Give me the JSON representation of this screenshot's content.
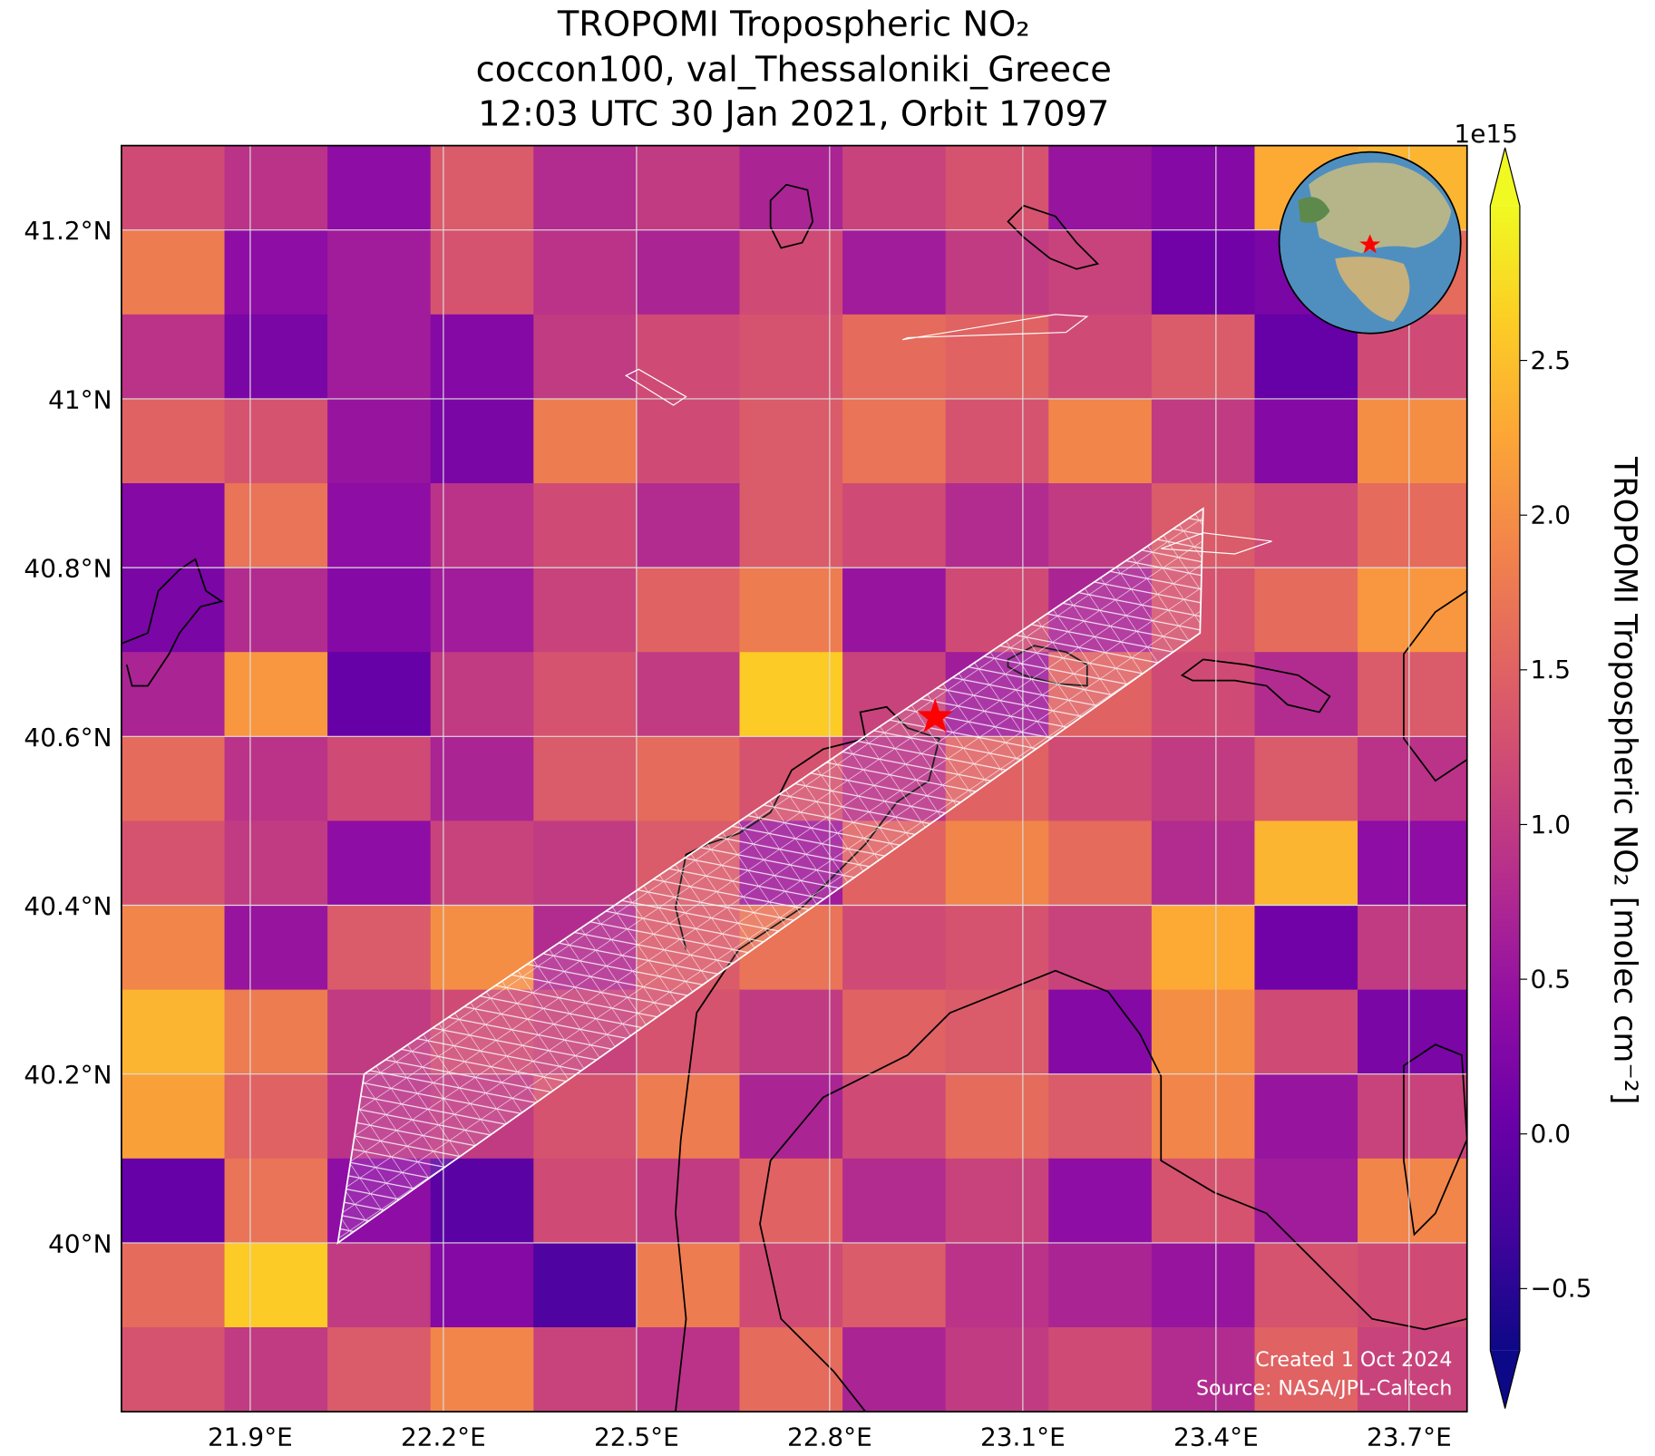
{
  "map": {
    "title": [
      "TROPOMI Tropospheric NO₂",
      "coccon100, val_Thessaloniki_Greece",
      "12:03 UTC 30 Jan 2021, Orbit 17097"
    ],
    "xlim": [
      21.7,
      23.79
    ],
    "ylim": [
      39.8,
      41.3
    ],
    "xticks": [
      {
        "value": 21.9,
        "label": "21.9°E"
      },
      {
        "value": 22.2,
        "label": "22.2°E"
      },
      {
        "value": 22.5,
        "label": "22.5°E"
      },
      {
        "value": 22.8,
        "label": "22.8°E"
      },
      {
        "value": 23.1,
        "label": "23.1°E"
      },
      {
        "value": 23.4,
        "label": "23.4°E"
      },
      {
        "value": 23.7,
        "label": "23.7°E"
      }
    ],
    "yticks": [
      {
        "value": 41.2,
        "label": "41.2°N"
      },
      {
        "value": 41,
        "label": "41°N"
      },
      {
        "value": 40.8,
        "label": "40.8°N"
      },
      {
        "value": 40.6,
        "label": "40.6°N"
      },
      {
        "value": 40.4,
        "label": "40.4°N"
      },
      {
        "value": 40.2,
        "label": "40.2°N"
      },
      {
        "value": 40,
        "label": "40°N"
      }
    ],
    "grid": true,
    "colormap": "plasma",
    "no2_grid": {
      "lon_edges": [
        21.7,
        21.86,
        22.02,
        22.18,
        22.34,
        22.5,
        22.66,
        22.82,
        22.98,
        23.14,
        23.3,
        23.46,
        23.62,
        23.79
      ],
      "lat_edges": [
        41.3,
        41.2,
        41.1,
        41.0,
        40.9,
        40.8,
        40.7,
        40.6,
        40.5,
        40.4,
        40.3,
        40.2,
        40.1,
        40.0,
        39.9,
        39.8
      ],
      "values": [
        [
          1.2,
          0.9,
          0.4,
          1.4,
          0.8,
          1.0,
          0.7,
          1.1,
          1.3,
          0.5,
          0.3,
          2.3,
          2.4
        ],
        [
          1.8,
          0.4,
          0.6,
          1.3,
          0.9,
          0.7,
          1.2,
          0.6,
          1.0,
          1.1,
          0.1,
          0.2,
          1.6
        ],
        [
          0.9,
          0.2,
          0.6,
          0.3,
          1.0,
          1.2,
          1.3,
          1.6,
          1.5,
          1.2,
          1.4,
          0.0,
          1.2
        ],
        [
          1.5,
          1.3,
          0.5,
          0.2,
          1.8,
          1.2,
          1.4,
          1.7,
          1.3,
          1.9,
          1.0,
          0.3,
          2.0
        ],
        [
          0.3,
          1.7,
          0.4,
          0.9,
          1.2,
          0.8,
          1.4,
          1.2,
          0.8,
          1.0,
          1.4,
          1.2,
          1.6
        ],
        [
          0.2,
          0.8,
          0.3,
          0.6,
          1.1,
          1.5,
          1.8,
          0.5,
          1.2,
          0.7,
          1.3,
          1.6,
          2.1
        ],
        [
          0.7,
          2.1,
          0.0,
          1.0,
          1.3,
          1.0,
          2.6,
          1.1,
          0.6,
          1.5,
          1.2,
          0.8,
          1.4
        ],
        [
          1.6,
          0.9,
          1.2,
          0.7,
          1.4,
          1.6,
          1.3,
          0.9,
          1.5,
          1.2,
          1.0,
          1.4,
          0.9
        ],
        [
          1.3,
          1.0,
          0.4,
          1.1,
          1.0,
          1.4,
          0.6,
          1.5,
          1.9,
          1.6,
          0.8,
          2.4,
          0.4
        ],
        [
          1.9,
          0.5,
          1.4,
          2.0,
          0.8,
          1.4,
          1.7,
          1.2,
          1.3,
          1.1,
          2.3,
          0.1,
          1.0
        ],
        [
          2.4,
          1.8,
          1.0,
          1.2,
          1.1,
          1.3,
          1.0,
          1.5,
          1.4,
          0.3,
          2.0,
          1.2,
          0.2
        ],
        [
          2.2,
          1.5,
          0.9,
          1.0,
          1.3,
          1.8,
          0.7,
          1.2,
          1.6,
          1.4,
          1.9,
          0.5,
          1.1
        ],
        [
          0.0,
          1.7,
          0.4,
          -0.1,
          1.2,
          1.0,
          1.5,
          0.8,
          1.1,
          0.4,
          1.3,
          0.6,
          1.9
        ],
        [
          1.6,
          2.6,
          1.0,
          0.3,
          -0.2,
          1.8,
          1.2,
          1.4,
          0.9,
          0.7,
          0.5,
          1.3,
          1.2
        ],
        [
          1.3,
          1.0,
          1.4,
          1.9,
          1.1,
          0.9,
          1.6,
          0.7,
          1.0,
          1.2,
          0.8,
          1.5,
          1.1
        ]
      ]
    },
    "colorbar": {
      "label": "TROPOMI Tropospheric NO₂ [molec cm⁻²]",
      "exponent": "1e15",
      "clim": [
        -0.7,
        3.0
      ],
      "extend": "both",
      "ticks": [
        {
          "value": -0.5,
          "label": "−0.5"
        },
        {
          "value": 0,
          "label": "0.0"
        },
        0.5,
        {
          "value": 1,
          "label": "1.0"
        },
        1.5,
        {
          "value": 2,
          "label": "2.0"
        },
        2.5
      ]
    },
    "credits": [
      "Created 1 Oct 2024",
      "Source: NASA/JPL-Caltech"
    ]
  }
}
